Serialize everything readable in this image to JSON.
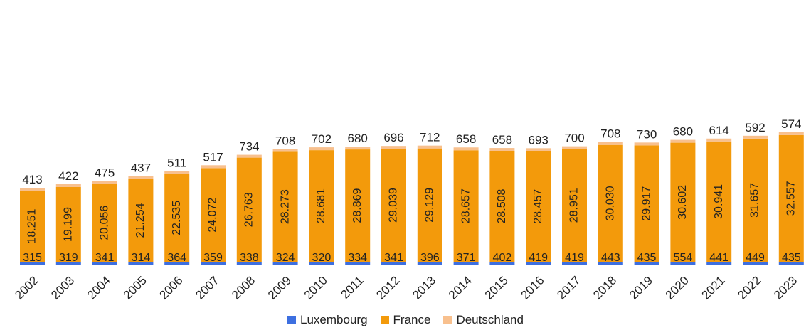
{
  "chart_data": {
    "type": "bar",
    "stacked": true,
    "categories": [
      "2002",
      "2003",
      "2004",
      "2005",
      "2006",
      "2007",
      "2008",
      "2009",
      "2010",
      "2011",
      "2012",
      "2013",
      "2014",
      "2015",
      "2016",
      "2017",
      "2018",
      "2019",
      "2020",
      "2021",
      "2022",
      "2023"
    ],
    "series": [
      {
        "name": "Luxembourg",
        "color": "#3d6fe0",
        "values": [
          315,
          319,
          341,
          314,
          364,
          359,
          338,
          324,
          320,
          334,
          341,
          396,
          371,
          402,
          419,
          419,
          443,
          435,
          554,
          441,
          449,
          435
        ],
        "labels": [
          "315",
          "319",
          "341",
          "314",
          "364",
          "359",
          "338",
          "324",
          "320",
          "334",
          "341",
          "396",
          "371",
          "402",
          "419",
          "419",
          "443",
          "435",
          "554",
          "441",
          "449",
          "435"
        ]
      },
      {
        "name": "France",
        "color": "#f39a0b",
        "values": [
          18251,
          19199,
          20056,
          21254,
          22535,
          24072,
          26763,
          28273,
          28681,
          28869,
          29039,
          29129,
          28657,
          28508,
          28457,
          28951,
          30030,
          29917,
          30602,
          30941,
          31657,
          32557
        ],
        "labels": [
          "18.251",
          "19.199",
          "20.056",
          "21.254",
          "22.535",
          "24.072",
          "26.763",
          "28.273",
          "28.681",
          "28.869",
          "29.039",
          "29.129",
          "28.657",
          "28.508",
          "28.457",
          "28.951",
          "30.030",
          "29.917",
          "30.602",
          "30.941",
          "31.657",
          "32.557"
        ]
      },
      {
        "name": "Deutschland",
        "color": "#f8c08e",
        "values": [
          413,
          422,
          475,
          437,
          511,
          517,
          734,
          708,
          702,
          680,
          696,
          712,
          658,
          658,
          693,
          700,
          708,
          730,
          680,
          614,
          592,
          574
        ],
        "labels": [
          "413",
          "422",
          "475",
          "437",
          "511",
          "517",
          "734",
          "708",
          "702",
          "680",
          "696",
          "712",
          "658",
          "658",
          "693",
          "700",
          "708",
          "730",
          "680",
          "614",
          "592",
          "574"
        ]
      }
    ],
    "legend_position": "bottom",
    "grid": false
  }
}
